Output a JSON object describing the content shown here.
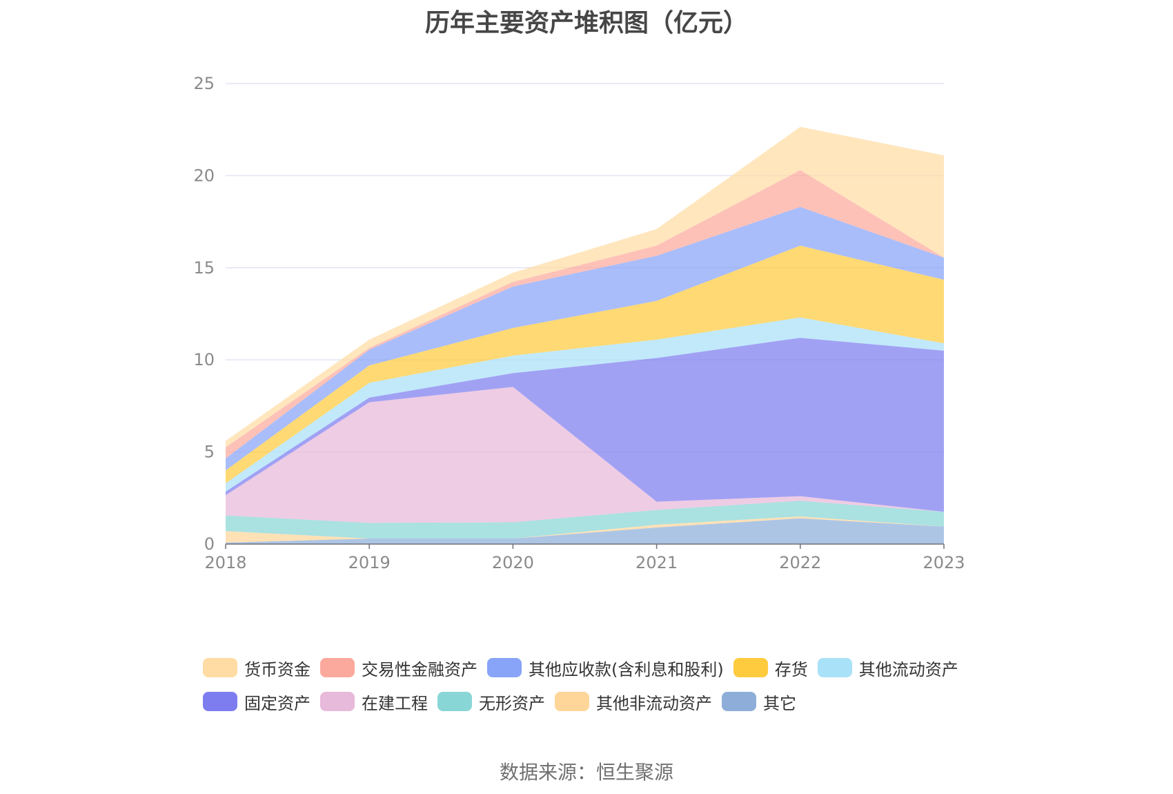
{
  "source_text": "数据来源：恒生聚源",
  "chart_data": {
    "type": "area",
    "stacked": true,
    "title": "历年主要资产堆积图（亿元）",
    "xlabel": "",
    "ylabel": "",
    "x": [
      "2018",
      "2019",
      "2020",
      "2021",
      "2022",
      "2023"
    ],
    "ylim": [
      0,
      25
    ],
    "yticks": [
      "0",
      "5",
      "10",
      "15",
      "20",
      "25"
    ],
    "grid": true,
    "legend_position": "bottom",
    "series": [
      {
        "name": "其它",
        "color": "#8eaed9",
        "values": [
          0.08,
          0.3,
          0.3,
          0.9,
          1.4,
          0.95
        ]
      },
      {
        "name": "其他非流动资产",
        "color": "#ffd69a",
        "values": [
          0.62,
          0.0,
          0.0,
          0.15,
          0.1,
          0.0
        ]
      },
      {
        "name": "无形资产",
        "color": "#89d6d6",
        "values": [
          0.85,
          0.85,
          0.88,
          0.8,
          0.85,
          0.8
        ]
      },
      {
        "name": "在建工程",
        "color": "#e7b9da",
        "values": [
          1.1,
          6.55,
          7.35,
          0.45,
          0.25,
          0.0
        ]
      },
      {
        "name": "固定资产",
        "color": "#7d7df0",
        "values": [
          0.2,
          0.25,
          0.75,
          7.8,
          8.6,
          8.75
        ]
      },
      {
        "name": "其他流动资产",
        "color": "#a9e1f8",
        "values": [
          0.45,
          0.8,
          0.95,
          1.0,
          1.1,
          0.4
        ]
      },
      {
        "name": "存货",
        "color": "#fecb3f",
        "values": [
          0.7,
          0.95,
          1.5,
          2.1,
          3.9,
          3.45
        ]
      },
      {
        "name": "其他应收款(含利息和股利)",
        "color": "#88a4f8",
        "values": [
          0.65,
          0.85,
          2.25,
          2.45,
          2.1,
          1.2
        ]
      },
      {
        "name": "交易性金融资产",
        "color": "#fca99d",
        "values": [
          0.6,
          0.1,
          0.25,
          0.55,
          2.0,
          0.0
        ]
      },
      {
        "name": "货币资金",
        "color": "#ffdca3",
        "values": [
          0.35,
          0.45,
          0.5,
          0.9,
          2.35,
          5.55
        ]
      }
    ],
    "legend": [
      [
        "货币资金",
        "交易性金融资产",
        "其他应收款(含利息和股利)",
        "存货",
        "其他流动资产"
      ],
      [
        "固定资产",
        "在建工程",
        "无形资产",
        "其他非流动资产",
        "其它"
      ]
    ]
  }
}
